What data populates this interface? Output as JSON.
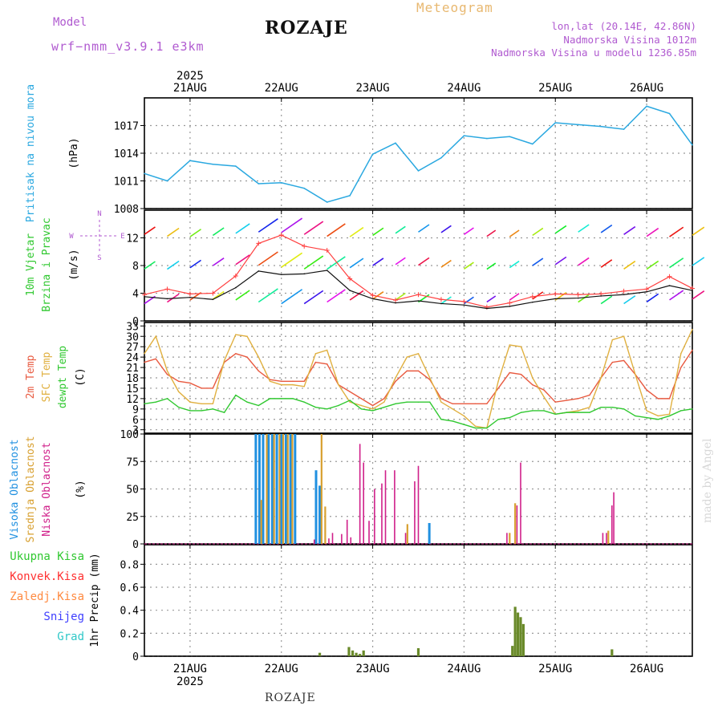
{
  "header": {
    "model_label": "Model",
    "model_name": "wrf−nmm_v3.9.1  e3km",
    "city": "ROZAJE",
    "chart_title": "Meteogram",
    "coords": "lon,lat (20.14E, 42.86N)",
    "elevation": "Nadmorska Visina 1012m",
    "model_elevation": "Nadmorska Visina u modelu 1236.85m"
  },
  "footer": {
    "city": "ROZAJE",
    "watermark": "made by Angel"
  },
  "colors": {
    "pressure": "#2aa8e0",
    "wind_speed": "#111111",
    "wind_gust": "#ff4040",
    "temp2m": "#e85a40",
    "sfc_temp": "#e0b040",
    "dewpt": "#30c830",
    "cloud_high": "#2090e0",
    "cloud_mid": "#d8a030",
    "cloud_low": "#d0208a",
    "precip_total": "#6a8a2a",
    "legend_purple": "#b05ad0",
    "precip_green": "#30c830",
    "precip_red": "#ff3030",
    "precip_orange": "#ff8a40",
    "precip_blue": "#4040ff",
    "precip_cyan": "#30c8c8"
  },
  "chart_data": [
    {
      "type": "line",
      "name": "sea-level-pressure",
      "ylabel_left": "Pritisak na nivou mora",
      "ylabel_unit": "(hPa)",
      "yticks": [
        1008,
        1011,
        1014,
        1017
      ],
      "ylim": [
        1008,
        1020
      ],
      "x_days": [
        20.5,
        20.75,
        21,
        21.25,
        21.5,
        21.75,
        22,
        22.25,
        22.5,
        22.75,
        23,
        23.25,
        23.5,
        23.75,
        24,
        24.25,
        24.5,
        24.75,
        25,
        25.25,
        25.5,
        25.75,
        26,
        26.25,
        26.5
      ],
      "values": [
        1011.8,
        1011,
        1013.2,
        1012.8,
        1012.6,
        1010.7,
        1010.8,
        1010.2,
        1008.7,
        1009.4,
        1013.9,
        1015.1,
        1012.1,
        1013.5,
        1015.9,
        1015.6,
        1015.8,
        1015,
        1017.3,
        1017.1,
        1016.9,
        1016.6,
        1019.1,
        1018.3,
        1014.9
      ]
    },
    {
      "type": "line",
      "name": "wind-10m",
      "ylabel_left": [
        "10m Vjetar",
        "Brzina i Pravac"
      ],
      "ylabel_unit": "(m/s)",
      "compass": [
        "N",
        "W",
        "E",
        "S"
      ],
      "yticks": [
        0,
        4,
        8,
        12
      ],
      "ylim": [
        0,
        16
      ],
      "x_days": [
        20.5,
        20.75,
        21,
        21.25,
        21.5,
        21.75,
        22,
        22.25,
        22.5,
        22.75,
        23,
        23.25,
        23.5,
        23.75,
        24,
        24.25,
        24.5,
        24.75,
        25,
        25.25,
        25.5,
        25.75,
        26,
        26.25,
        26.5
      ],
      "series": [
        {
          "name": "speed",
          "values": [
            3.5,
            3.2,
            3.4,
            3.1,
            4.8,
            7.2,
            6.7,
            6.8,
            7.3,
            4.4,
            3.2,
            2.6,
            2.9,
            2.5,
            2.3,
            1.8,
            2.1,
            2.7,
            3.2,
            3.3,
            3.6,
            3.8,
            4.2,
            5.1,
            4.4
          ]
        },
        {
          "name": "gust",
          "values": [
            3.8,
            4.6,
            3.9,
            4.0,
            6.5,
            11.2,
            12.4,
            10.8,
            10.2,
            6.1,
            3.7,
            3.0,
            3.8,
            3.1,
            2.8,
            2.0,
            2.6,
            3.5,
            3.9,
            3.8,
            3.9,
            4.3,
            4.6,
            6.4,
            4.7
          ]
        }
      ]
    },
    {
      "type": "line",
      "name": "temperature",
      "ylabel_left": [
        "2m Temp",
        "SFC Temp",
        "dewpt Temp"
      ],
      "ylabel_unit": "(C)",
      "yticks": [
        3,
        6,
        9,
        12,
        15,
        18,
        21,
        24,
        27,
        30,
        33
      ],
      "ylim": [
        2,
        34
      ],
      "x_days": [
        20.5,
        20.625,
        20.75,
        20.875,
        21,
        21.125,
        21.25,
        21.375,
        21.5,
        21.625,
        21.75,
        21.875,
        22,
        22.125,
        22.25,
        22.375,
        22.5,
        22.625,
        22.75,
        22.875,
        23,
        23.125,
        23.25,
        23.375,
        23.5,
        23.625,
        23.75,
        23.875,
        24,
        24.125,
        24.25,
        24.375,
        24.5,
        24.625,
        24.75,
        24.875,
        25,
        25.125,
        25.25,
        25.375,
        25.5,
        25.625,
        25.75,
        25.875,
        26,
        26.125,
        26.25,
        26.375,
        26.5
      ],
      "series": [
        {
          "name": "2m",
          "values": [
            22.5,
            23.5,
            19,
            17,
            16.5,
            15,
            15,
            22.5,
            25,
            24,
            20,
            17.5,
            17,
            17,
            17,
            22.5,
            22,
            16,
            14,
            12,
            10,
            12,
            17,
            20,
            20,
            17.5,
            12,
            10.5,
            10.5,
            10.5,
            10.5,
            15,
            19.5,
            19,
            16,
            14.5,
            11,
            11.5,
            12,
            13,
            18,
            22.5,
            23,
            19,
            14.5,
            12,
            12,
            21,
            26
          ]
        },
        {
          "name": "sfc",
          "values": [
            25,
            30,
            20,
            14,
            11,
            10.5,
            10.5,
            23,
            30.5,
            30,
            24,
            17,
            16,
            16,
            15.5,
            25,
            26,
            16,
            11,
            10,
            9,
            11,
            18,
            24,
            25,
            18,
            11,
            9,
            7,
            4,
            3.5,
            17,
            27.5,
            27,
            18,
            12.5,
            7.5,
            8,
            8.5,
            9.5,
            18,
            29,
            30,
            19,
            8.5,
            7,
            7.5,
            25,
            32
          ]
        },
        {
          "name": "dewpt",
          "values": [
            10.5,
            11,
            12,
            9.5,
            8.5,
            8.5,
            9,
            8,
            13,
            11,
            10,
            12,
            12,
            12,
            11,
            9.5,
            9,
            10,
            11.5,
            9,
            8.5,
            9.5,
            10.5,
            11,
            11,
            11,
            6,
            5.5,
            4.5,
            3.5,
            3.5,
            6,
            6.5,
            8,
            8.5,
            8.5,
            7.5,
            8,
            8,
            8,
            9.5,
            9.5,
            9,
            7,
            6.5,
            6,
            7,
            8.5,
            9
          ]
        }
      ]
    },
    {
      "type": "bar",
      "name": "cloud-cover",
      "ylabel_left": [
        "Visoka Oblacnost",
        "Srednja Oblacnost",
        "Niska Oblacnost"
      ],
      "ylabel_unit": "(%)",
      "yticks": [
        0,
        25,
        50,
        75,
        100
      ],
      "ylim": [
        0,
        100
      ],
      "series": [
        {
          "name": "high",
          "x_days": [
            21.72,
            21.76,
            21.8,
            21.86,
            21.9,
            21.95,
            22.0,
            22.05,
            22.1,
            22.15,
            22.38,
            22.42,
            23.62
          ],
          "values": [
            100,
            100,
            100,
            100,
            100,
            100,
            100,
            100,
            100,
            100,
            67,
            53,
            19
          ]
        },
        {
          "name": "mid",
          "x_days": [
            21.78,
            21.84,
            21.92,
            21.98,
            22.02,
            22.07,
            22.12,
            22.44,
            22.48,
            23.38,
            24.5,
            24.56,
            25.58
          ],
          "values": [
            40,
            100,
            100,
            100,
            100,
            100,
            100,
            100,
            34,
            18,
            10,
            37,
            12
          ]
        },
        {
          "name": "low",
          "x_days": [
            22.36,
            22.52,
            22.56,
            22.66,
            22.72,
            22.76,
            22.86,
            22.9,
            22.96,
            23.02,
            23.1,
            23.14,
            23.24,
            23.36,
            23.46,
            23.5,
            24.47,
            24.58,
            24.62,
            25.52,
            25.56,
            25.62,
            25.64
          ],
          "values": [
            4,
            5,
            10,
            9,
            22,
            6,
            91,
            74,
            21,
            50,
            55,
            67,
            67,
            10,
            57,
            71,
            10,
            35,
            74,
            10,
            10,
            35,
            47
          ]
        }
      ]
    },
    {
      "type": "bar",
      "name": "hourly-precip",
      "ylabel_right": "1hr Precip (mm)",
      "legend": [
        "Ukupna  Kisa",
        "Konvek.Kisa",
        "Zaledj.Kisa",
        "Snijeg",
        "Grad"
      ],
      "yticks": [
        0,
        0.2,
        0.4,
        0.6,
        0.8
      ],
      "ylim": [
        0,
        0.97
      ],
      "x_days": [
        22.42,
        22.74,
        22.78,
        22.82,
        22.86,
        22.9,
        23.5,
        24.53,
        24.56,
        24.59,
        24.62,
        24.65,
        25.62
      ],
      "values": [
        0.03,
        0.08,
        0.05,
        0.03,
        0.02,
        0.05,
        0.07,
        0.09,
        0.43,
        0.38,
        0.34,
        0.28,
        0.06
      ]
    }
  ],
  "x_axis": {
    "year": "2025",
    "day_labels": [
      "21AUG",
      "22AUG",
      "23AUG",
      "24AUG",
      "25AUG",
      "26AUG"
    ],
    "day_values": [
      21,
      22,
      23,
      24,
      25,
      26
    ],
    "xlim": [
      20.5,
      26.5
    ]
  }
}
